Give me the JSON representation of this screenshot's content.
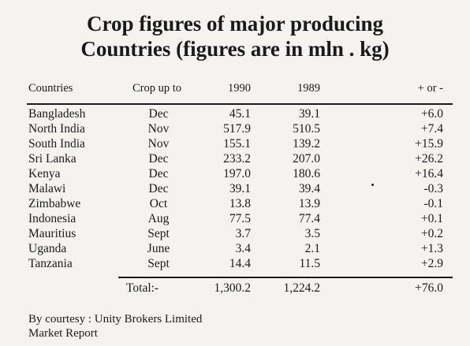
{
  "title": {
    "line1": "Crop figures  of major producing",
    "line2": "Countries (figures are in mln . kg)"
  },
  "header": {
    "countries": "Countries",
    "crop_up_to": "Crop up to",
    "y1990": "1990",
    "y1989": "1989",
    "change": "+ or -"
  },
  "rows": [
    {
      "country": "Bangladesh",
      "month": "Dec",
      "v1990": "45.1",
      "v1989": "39.1",
      "change": "+6.0"
    },
    {
      "country": "North India",
      "month": "Nov",
      "v1990": "517.9",
      "v1989": "510.5",
      "change": "+7.4"
    },
    {
      "country": "South India",
      "month": "Nov",
      "v1990": "155.1",
      "v1989": "139.2",
      "change": "+15.9"
    },
    {
      "country": "Sri Lanka",
      "month": "Dec",
      "v1990": "233.2",
      "v1989": "207.0",
      "change": "+26.2"
    },
    {
      "country": "Kenya",
      "month": "Dec",
      "v1990": "197.0",
      "v1989": "180.6",
      "change": "+16.4"
    },
    {
      "country": "Malawi",
      "month": "Dec",
      "v1990": "39.1",
      "v1989": "39.4",
      "change": "-0.3"
    },
    {
      "country": "Zimbabwe",
      "month": "Oct",
      "v1990": "13.8",
      "v1989": "13.9",
      "change": "-0.1"
    },
    {
      "country": "Indonesia",
      "month": "Aug",
      "v1990": "77.5",
      "v1989": "77.4",
      "change": "+0.1"
    },
    {
      "country": "Mauritius",
      "month": "Sept",
      "v1990": "3.7",
      "v1989": "3.5",
      "change": "+0.2"
    },
    {
      "country": "Uganda",
      "month": "June",
      "v1990": "3.4",
      "v1989": "2.1",
      "change": "+1.3"
    },
    {
      "country": "Tanzania",
      "month": "Sept",
      "v1990": "14.4",
      "v1989": "11.5",
      "change": "+2.9"
    }
  ],
  "total": {
    "label": "Total:-",
    "v1990": "1,300.2",
    "v1989": "1,224.2",
    "change": "+76.0"
  },
  "footer": {
    "line1": "By courtesy : Unity Brokers Limited",
    "line2": "Market Report"
  }
}
